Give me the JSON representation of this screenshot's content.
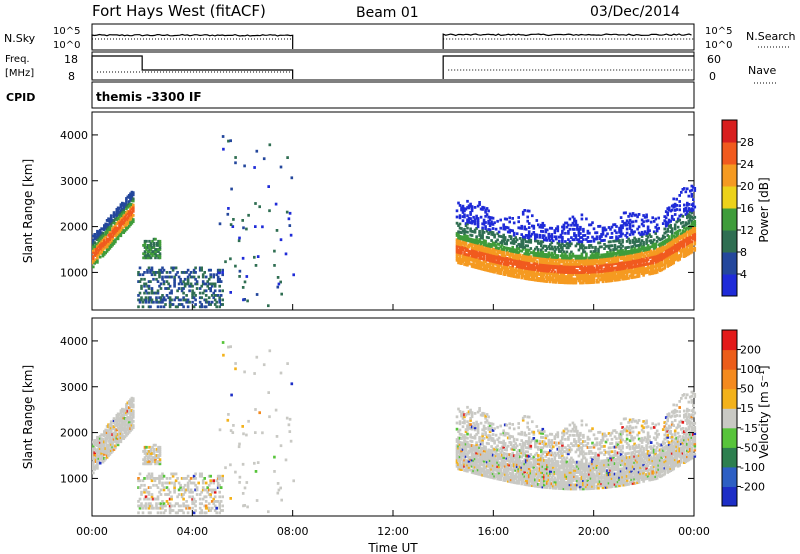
{
  "header": {
    "station": "Fort Hays West (fitACF)",
    "beam": "Beam 01",
    "date": "03/Dec/2014"
  },
  "sky_panel": {
    "left_label": "N.Sky",
    "right_label": "N.Search",
    "left_ticks": [
      "10^5",
      "10^0"
    ],
    "right_ticks": [
      "10^5",
      "10^0"
    ]
  },
  "freq_panel": {
    "left_label_line1": "Freq.",
    "left_label_line2": "[MHz]",
    "right_label": "Nave",
    "left_ticks": [
      "18",
      "8"
    ],
    "right_ticks": [
      "60",
      "0"
    ]
  },
  "cpid": {
    "label": "CPID",
    "value": "themis -3300 IF"
  },
  "chart_data": [
    {
      "type": "heatmap",
      "quantity": "Power",
      "ylabel": "Slant Range [km]",
      "yticks": [
        1000,
        2000,
        3000,
        4000
      ],
      "ylim": [
        180,
        4500
      ],
      "xlim_hours": [
        0,
        24
      ],
      "colorbar": {
        "label": "Power [dB]",
        "ticks": [
          "4",
          "8",
          "12",
          "16",
          "20",
          "24",
          "28"
        ],
        "colors": [
          "#1f2bd8",
          "#24479c",
          "#2f6e52",
          "#3f9c3a",
          "#ecd21a",
          "#f59a21",
          "#f15a1e",
          "#d81f1f"
        ]
      }
    },
    {
      "type": "heatmap",
      "quantity": "Velocity",
      "ylabel": "Slant Range [km]",
      "yticks": [
        1000,
        2000,
        3000,
        4000
      ],
      "ylim": [
        180,
        4500
      ],
      "xlim_hours": [
        0,
        24
      ],
      "xticks": [
        "00:00",
        "04:00",
        "08:00",
        "12:00",
        "16:00",
        "20:00",
        "00:00"
      ],
      "xlabel": "Time UT",
      "colorbar": {
        "label": "Velocity [m s⁻¹]",
        "ticks": [
          "200",
          "100",
          "50",
          "15",
          "-15",
          "-50",
          "-100",
          "-200"
        ],
        "colors": [
          "#1d2ec6",
          "#2d5fc4",
          "#2d7f4f",
          "#57c43a",
          "#c9c9c4",
          "#f3b21b",
          "#f48a1e",
          "#ec5d1a",
          "#e31a1a"
        ]
      }
    }
  ]
}
